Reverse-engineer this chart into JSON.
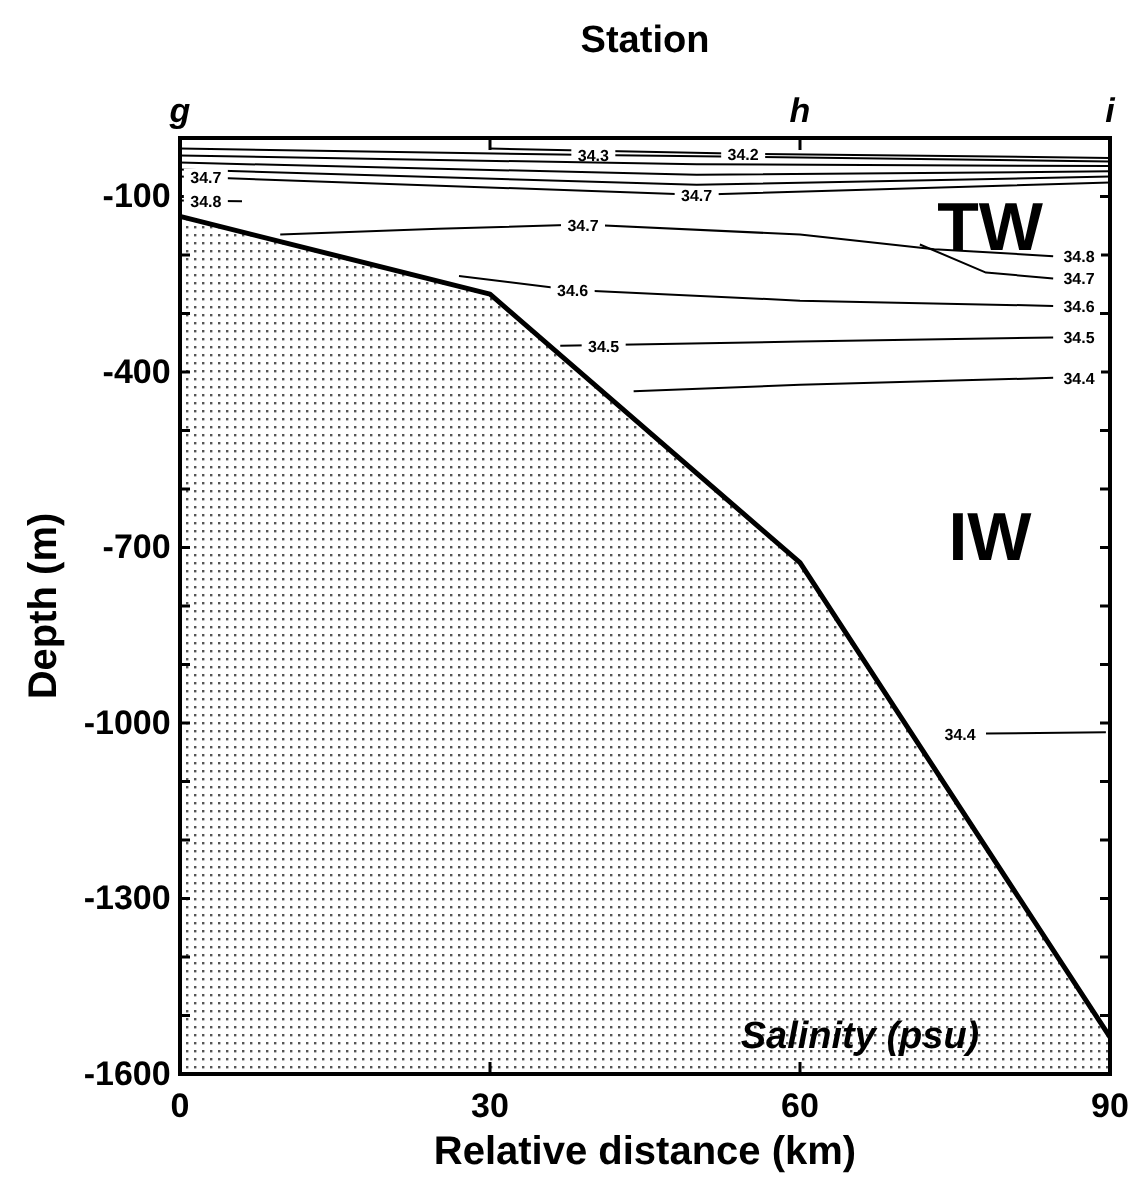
{
  "chart_data": {
    "type": "line",
    "xlabel": "Relative distance (km)",
    "ylabel": "Depth (m)",
    "x2label": "Station",
    "xlim": [
      0,
      90
    ],
    "xticks": [
      0,
      30,
      60,
      90
    ],
    "ylim": [
      -1600,
      0
    ],
    "yticks": [
      {
        "value": -100,
        "label": "-100"
      },
      {
        "value": -200,
        "label": null
      },
      {
        "value": -300,
        "label": null
      },
      {
        "value": -400,
        "label": "-400"
      },
      {
        "value": -500,
        "label": null
      },
      {
        "value": -600,
        "label": null
      },
      {
        "value": -700,
        "label": "-700"
      },
      {
        "value": -800,
        "label": null
      },
      {
        "value": -900,
        "label": null
      },
      {
        "value": -1000,
        "label": "-1000"
      },
      {
        "value": -1100,
        "label": null
      },
      {
        "value": -1200,
        "label": null
      },
      {
        "value": -1300,
        "label": "-1300"
      },
      {
        "value": -1400,
        "label": null
      },
      {
        "value": -1500,
        "label": null
      },
      {
        "value": -1600,
        "label": "-1600"
      }
    ],
    "series": [
      {
        "color": "#000000",
        "x": [
          0,
          30,
          60,
          90
        ],
        "values": [
          -134,
          -267,
          -726,
          -1537
        ]
      },
      {
        "color": "#000000",
        "x": [
          30,
          54.5,
          90
        ],
        "values": [
          -18,
          -27,
          -34
        ]
      },
      {
        "color": "#000000",
        "x": [
          0,
          40,
          90
        ],
        "values": [
          -18,
          -29,
          -40
        ]
      },
      {
        "color": "#000000",
        "x": [
          0,
          50,
          90
        ],
        "values": [
          -30,
          -45,
          -48
        ]
      },
      {
        "color": "#000000",
        "x": [
          0,
          50,
          90
        ],
        "values": [
          -42,
          -63,
          -57
        ]
      },
      {
        "color": "#000000",
        "x": [
          0,
          50,
          90
        ],
        "values": [
          -54,
          -80,
          -66
        ]
      },
      {
        "color": "#000000",
        "x": [
          0,
          50,
          90
        ],
        "values": [
          -66,
          -97,
          -76
        ]
      },
      {
        "color": "#000000",
        "x": [
          0,
          6
        ],
        "values": [
          -107,
          -108
        ]
      },
      {
        "color": "#000000",
        "x": [
          9.7,
          25,
          39,
          60,
          73,
          84.5
        ],
        "values": [
          -165,
          -155,
          -148,
          -165,
          -190,
          -202
        ]
      },
      {
        "color": "#000000",
        "x": [
          71.6,
          78,
          84.5
        ],
        "values": [
          -182,
          -230,
          -240
        ]
      },
      {
        "color": "#000000",
        "x": [
          27,
          38,
          60,
          84.5
        ],
        "values": [
          -236,
          -260,
          -278,
          -287
        ]
      },
      {
        "color": "#000000",
        "x": [
          36.8,
          60,
          84.5
        ],
        "values": [
          -355,
          -348,
          -341
        ]
      },
      {
        "color": "#000000",
        "x": [
          43.9,
          60,
          84.5
        ],
        "values": [
          -433,
          -422,
          -410
        ]
      },
      {
        "color": "#000000",
        "x": [
          78,
          89.6
        ],
        "values": [
          -1018,
          -1016
        ]
      }
    ],
    "annotations": [
      {
        "text": "34.2",
        "x": 54.5,
        "y": -27
      },
      {
        "text": "34.3",
        "x": 40,
        "y": -29
      },
      {
        "text": "34.7",
        "x": 2.5,
        "y": -66
      },
      {
        "text": "34.8",
        "x": 2.5,
        "y": -107
      },
      {
        "text": "34.7",
        "x": 50,
        "y": -97
      },
      {
        "text": "34.7",
        "x": 39,
        "y": -148
      },
      {
        "text": "34.8",
        "x": 87,
        "y": -202
      },
      {
        "text": "34.7",
        "x": 87,
        "y": -240
      },
      {
        "text": "34.6",
        "x": 38,
        "y": -260
      },
      {
        "text": "34.6",
        "x": 87,
        "y": -287
      },
      {
        "text": "34.5",
        "x": 41,
        "y": -355
      },
      {
        "text": "34.5",
        "x": 87,
        "y": -341
      },
      {
        "text": "34.4",
        "x": 87,
        "y": -410
      },
      {
        "text": "34.4",
        "x": 75.5,
        "y": -1018
      },
      "g",
      "h",
      "i",
      "TW",
      "IW",
      "Salinity (psu)"
    ]
  }
}
